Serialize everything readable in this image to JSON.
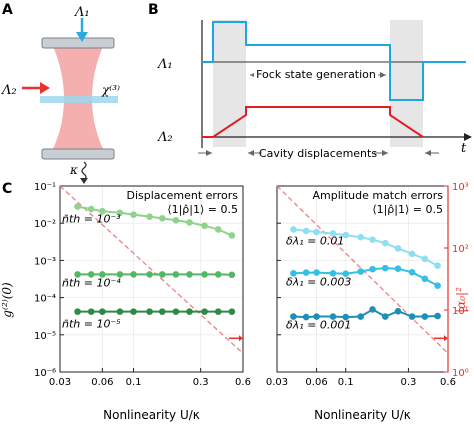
{
  "panels": {
    "A": "A",
    "B": "B",
    "C": "C"
  },
  "panel_a": {
    "lambda1_label": "Λ₁",
    "lambda2_label": "Λ₂",
    "chi3_label": "χ⁽³⁾",
    "kappa_label": "κ",
    "beam_color": "#f4a6a6",
    "arrow1_color": "#29a9e0",
    "arrow2_color": "#e8322b"
  },
  "panel_b": {
    "lambda1_label": "Λ₁",
    "lambda2_label": "Λ₂",
    "time_label": "t",
    "fock_label": "Fock state generation",
    "cavity_label": "Cavity displacements",
    "lambda1_color": "#1ea7df",
    "lambda2_color": "#e11e26"
  },
  "panel_c": {
    "shared_xlabel": "Nonlinearity U/κ",
    "ylabel_left": "g⁽²⁾(0)",
    "ylabel_right": "|α₀|²",
    "x_ticks": [
      "0.03",
      "0.06",
      "0.1",
      "0.3",
      "0.6"
    ],
    "left_y_ticks": [
      "10⁻⁶",
      "10⁻⁵",
      "10⁻⁴",
      "10⁻³",
      "10⁻²",
      "10⁻¹"
    ],
    "right_y_ticks": [
      "10⁰",
      "10¹",
      "10²",
      "10³"
    ],
    "right_axis_color": "#e8322b"
  },
  "chart_data": [
    {
      "type": "line",
      "title": "Displacement errors",
      "subtitle": "⟨1|ρ̂|1⟩ = 0.5",
      "xlabel": "Nonlinearity U/κ",
      "ylabel": "g⁽²⁾(0)",
      "xscale": "log",
      "yscale": "log",
      "xlim": [
        0.03,
        0.6
      ],
      "ylim": [
        1e-06,
        0.1
      ],
      "x": [
        0.04,
        0.05,
        0.06,
        0.08,
        0.1,
        0.13,
        0.16,
        0.2,
        0.25,
        0.32,
        0.4,
        0.5
      ],
      "series": [
        {
          "name": "n̄th = 10⁻³",
          "color": "#8fd38c",
          "values": [
            0.028,
            0.024,
            0.021,
            0.019,
            0.017,
            0.015,
            0.0135,
            0.012,
            0.0105,
            0.0085,
            0.0068,
            0.0047
          ]
        },
        {
          "name": "n̄th = 10⁻⁴",
          "color": "#55b766",
          "values": [
            0.00042,
            0.00042,
            0.00042,
            0.00042,
            0.00042,
            0.00042,
            0.00042,
            0.00042,
            0.00042,
            0.00042,
            0.00042,
            0.00041
          ]
        },
        {
          "name": "n̄th = 10⁻⁵",
          "color": "#2e8a45",
          "values": [
            4.2e-05,
            4.2e-05,
            4.2e-05,
            4.2e-05,
            4.2e-05,
            4.2e-05,
            4.2e-05,
            4.2e-05,
            4.2e-05,
            4.2e-05,
            4.2e-05,
            4.2e-05
          ]
        }
      ],
      "dashed_line_right_axis": {
        "x": [
          0.03,
          0.6
        ],
        "values": [
          1000,
          2
        ]
      },
      "grid": true
    },
    {
      "type": "line",
      "title": "Amplitude match errors",
      "subtitle": "⟨1|ρ̂|1⟩ = 0.5",
      "xlabel": "Nonlinearity U/κ",
      "ylabel": "|α₀|²",
      "xscale": "log",
      "yscale": "log",
      "xlim": [
        0.03,
        0.6
      ],
      "ylim": [
        1e-06,
        0.1
      ],
      "x": [
        0.04,
        0.05,
        0.06,
        0.08,
        0.1,
        0.13,
        0.16,
        0.2,
        0.25,
        0.32,
        0.4,
        0.5
      ],
      "series": [
        {
          "name": "δλ₁ = 0.01",
          "color": "#8fdff2",
          "values": [
            0.0068,
            0.0062,
            0.0058,
            0.0053,
            0.0048,
            0.0042,
            0.0036,
            0.0029,
            0.0021,
            0.0015,
            0.0011,
            0.00072
          ]
        },
        {
          "name": "δλ₁ = 0.003",
          "color": "#35bfe2",
          "values": [
            0.00045,
            0.00047,
            0.00047,
            0.00045,
            0.00044,
            0.0005,
            0.00058,
            0.00062,
            0.0006,
            0.00048,
            0.00032,
            0.00021
          ]
        },
        {
          "name": "δλ₁ = 0.001",
          "color": "#1f8fb8",
          "values": [
            3.1e-05,
            3e-05,
            3.1e-05,
            3.1e-05,
            3e-05,
            3.1e-05,
            4.8e-05,
            3.1e-05,
            4.3e-05,
            3.1e-05,
            3.1e-05,
            3.2e-05
          ]
        }
      ],
      "dashed_line_right_axis": {
        "x": [
          0.03,
          0.6
        ],
        "values": [
          1000,
          2
        ]
      },
      "grid": true
    }
  ]
}
